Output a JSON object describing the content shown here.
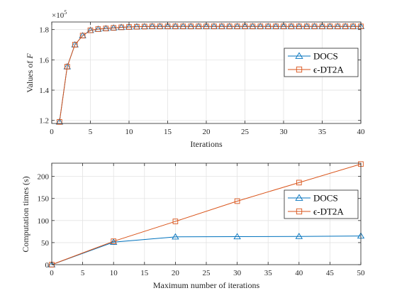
{
  "chart_data": [
    {
      "type": "line",
      "xlabel": "Iterations",
      "ylabel_prefix": "Values of ",
      "ylabel_symbol": "F",
      "xlim": [
        0,
        40
      ],
      "ylim": [
        1.18,
        1.85
      ],
      "y_scale_exponent": "5",
      "y_scale_base": "×10",
      "xticks": [
        "0",
        "5",
        "10",
        "15",
        "20",
        "25",
        "30",
        "35",
        "40"
      ],
      "yticks": [
        "1.2",
        "1.4",
        "1.6",
        "1.8"
      ],
      "grid": true,
      "legend_position": "right",
      "x": [
        1,
        2,
        3,
        4,
        5,
        6,
        7,
        8,
        9,
        10,
        11,
        12,
        13,
        14,
        15,
        16,
        17,
        18,
        19,
        20,
        21,
        22,
        23,
        24,
        25,
        26,
        27,
        28,
        29,
        30,
        31,
        32,
        33,
        34,
        35,
        36,
        37,
        38,
        39,
        40
      ],
      "series": [
        {
          "name": "DOCS",
          "marker": "triangle",
          "color": "#0072BD",
          "values": [
            1.19,
            1.555,
            1.7,
            1.76,
            1.795,
            1.803,
            1.807,
            1.811,
            1.815,
            1.817,
            1.819,
            1.82,
            1.821,
            1.821,
            1.821,
            1.821,
            1.821,
            1.821,
            1.821,
            1.821,
            1.821,
            1.821,
            1.821,
            1.821,
            1.821,
            1.821,
            1.821,
            1.821,
            1.821,
            1.821,
            1.821,
            1.821,
            1.821,
            1.821,
            1.821,
            1.821,
            1.821,
            1.821,
            1.821,
            1.821
          ]
        },
        {
          "name": "ϵ-DT2A",
          "marker": "square",
          "color": "#D95319",
          "values": [
            1.19,
            1.555,
            1.7,
            1.76,
            1.795,
            1.803,
            1.807,
            1.811,
            1.815,
            1.817,
            1.819,
            1.82,
            1.821,
            1.821,
            1.821,
            1.821,
            1.821,
            1.821,
            1.821,
            1.821,
            1.821,
            1.821,
            1.821,
            1.821,
            1.821,
            1.821,
            1.821,
            1.821,
            1.821,
            1.821,
            1.821,
            1.821,
            1.821,
            1.821,
            1.821,
            1.821,
            1.821,
            1.821,
            1.821,
            1.821
          ]
        }
      ]
    },
    {
      "type": "line",
      "xlabel": "Maximum number of iterations",
      "ylabel": "Computation times (s)",
      "xlim": [
        0,
        50
      ],
      "ylim": [
        0,
        230
      ],
      "xticks": [
        "0",
        "5",
        "10",
        "15",
        "20",
        "25",
        "30",
        "35",
        "40",
        "45",
        "50"
      ],
      "yticks": [
        "0",
        "50",
        "100",
        "150",
        "200"
      ],
      "grid": true,
      "legend_position": "right",
      "x": [
        0,
        10,
        20,
        30,
        40,
        50
      ],
      "series": [
        {
          "name": "DOCS",
          "marker": "triangle",
          "color": "#0072BD",
          "values": [
            0,
            51,
            63,
            63.5,
            64,
            65
          ]
        },
        {
          "name": "ϵ-DT2A",
          "marker": "square",
          "color": "#D95319",
          "values": [
            0,
            53,
            98,
            144,
            186,
            228
          ]
        }
      ]
    }
  ]
}
